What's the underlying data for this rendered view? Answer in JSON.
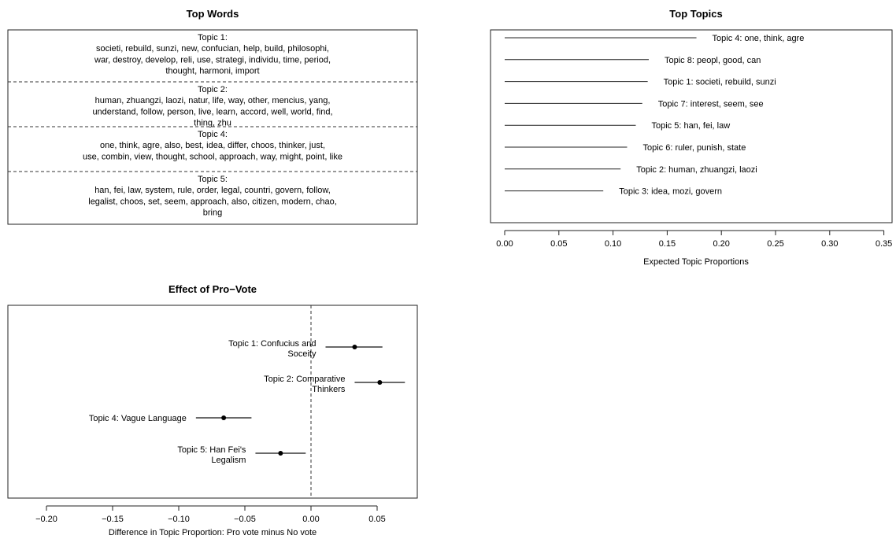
{
  "chart_data": [
    {
      "type": "table",
      "title": "Top Words",
      "topics": [
        {
          "label": "Topic 1:",
          "lines": [
            "societi, rebuild, sunzi, new, confucian, help, build, philosophi,",
            "war, destroy, develop, reli, use, strategi, individu, time, period,",
            "thought, harmoni, import"
          ]
        },
        {
          "label": "Topic 2:",
          "lines": [
            "human, zhuangzi, laozi, natur, life, way, other, mencius, yang,",
            "understand, follow, person, live, learn, accord, well, world, find,",
            "thing, zhu"
          ]
        },
        {
          "label": "Topic 4:",
          "lines": [
            "one, think, agre, also, best, idea, differ, choos, thinker, just,",
            "use, combin, view, thought, school, approach, way, might, point, like"
          ]
        },
        {
          "label": "Topic 5:",
          "lines": [
            "han, fei, law, system, rule, order, legal, countri, govern, follow,",
            "legalist, choos, set, seem, approach, also, citizen, modern, chao,",
            "bring"
          ]
        }
      ]
    },
    {
      "type": "bar",
      "title": "Top Topics",
      "xlabel": "Expected Topic Proportions",
      "xlim": [
        0,
        0.36
      ],
      "xticks": [
        "0.00",
        "0.05",
        "0.10",
        "0.15",
        "0.20",
        "0.25",
        "0.30",
        "0.35"
      ],
      "categories": [
        "Topic 4: one, think, agre",
        "Topic 8: peopl, good, can",
        "Topic 1: societi, rebuild, sunzi",
        "Topic 7: interest, seem, see",
        "Topic 5: han, fei, law",
        "Topic 6: ruler, punish, state",
        "Topic 2: human, zhuangzi, laozi",
        "Topic 3: idea, mozi, govern"
      ],
      "values": [
        0.177,
        0.133,
        0.132,
        0.127,
        0.121,
        0.113,
        0.107,
        0.091
      ]
    },
    {
      "type": "scatter",
      "title": "Effect of Pro−Vote",
      "xlabel": "Difference in Topic Proportion: Pro vote minus No vote",
      "xlim": [
        -0.22,
        0.08
      ],
      "xticks": [
        "−0.20",
        "−0.15",
        "−0.10",
        "−0.05",
        "0.00",
        "0.05"
      ],
      "points": [
        {
          "label_lines": [
            "Topic 1: Confucius and",
            "Soceity"
          ],
          "estimate": 0.033,
          "ci": [
            0.011,
            0.054
          ]
        },
        {
          "label_lines": [
            "Topic 2: Comparative",
            "Thinkers"
          ],
          "estimate": 0.052,
          "ci": [
            0.033,
            0.071
          ]
        },
        {
          "label_lines": [
            "Topic 4: Vague Language"
          ],
          "estimate": -0.066,
          "ci": [
            -0.087,
            -0.045
          ]
        },
        {
          "label_lines": [
            "Topic 5: Han Fei's",
            "Legalism"
          ],
          "estimate": -0.023,
          "ci": [
            -0.042,
            -0.004
          ]
        }
      ]
    }
  ]
}
